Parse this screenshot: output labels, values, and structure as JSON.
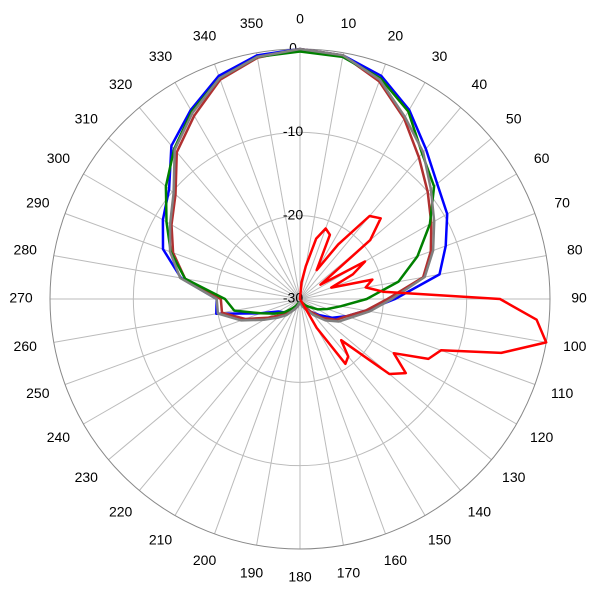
{
  "chart_data": {
    "type": "polar",
    "x": [
      0,
      10,
      20,
      30,
      40,
      50,
      60,
      70,
      80,
      90,
      100,
      110,
      120,
      130,
      140,
      150,
      160,
      170,
      180,
      190,
      200,
      210,
      220,
      230,
      240,
      250,
      260,
      270,
      280,
      290,
      300,
      310,
      320,
      330,
      340,
      350
    ],
    "xticks": [
      0,
      10,
      20,
      30,
      40,
      50,
      60,
      70,
      80,
      90,
      100,
      110,
      120,
      130,
      140,
      150,
      160,
      170,
      180,
      190,
      200,
      210,
      220,
      230,
      240,
      250,
      260,
      270,
      280,
      290,
      300,
      310,
      320,
      330,
      340,
      350
    ],
    "ylim": [
      -30,
      0
    ],
    "yticks": [
      0,
      -10,
      -20,
      -30
    ],
    "grid": true,
    "series": [
      {
        "color": "#0000ff",
        "values": [
          0,
          -0.3,
          -1.5,
          -3.8,
          -6.5,
          -8.5,
          -9.6,
          -11.4,
          -13,
          -18.6,
          -22,
          -24,
          -25.5,
          -27,
          -28,
          -29,
          -29.5,
          -29.5,
          -29.5,
          -29.5,
          -29,
          -28.5,
          -28,
          -27.5,
          -27,
          -25,
          -19.8,
          -20,
          -15.5,
          -12.5,
          -11,
          -9.5,
          -6,
          -3.8,
          -1.5,
          -0.3
        ]
      },
      {
        "color": "#b03030",
        "values": [
          0,
          -0.3,
          -2.2,
          -5,
          -7.8,
          -10,
          -11.8,
          -13.3,
          -15,
          -19.5,
          -22,
          -24,
          -25,
          -26.5,
          -28,
          -29,
          -29.5,
          -29.5,
          -29.5,
          -29.5,
          -29,
          -28.5,
          -28,
          -27,
          -25.5,
          -23,
          -20.5,
          -20.5,
          -16,
          -13.8,
          -12.2,
          -10.5,
          -7,
          -4.6,
          -2,
          -0.6
        ]
      },
      {
        "color": "#008000",
        "values": [
          -0.3,
          -0.5,
          -1.8,
          -4,
          -7.2,
          -9,
          -12,
          -15,
          -18,
          -22,
          -25,
          -26.5,
          -27.5,
          -28.5,
          -29,
          -29.5,
          -29.5,
          -29.5,
          -29.5,
          -29.5,
          -29.5,
          -29,
          -28.5,
          -27.5,
          -26.5,
          -25,
          -22,
          -21,
          -16,
          -13.5,
          -11.5,
          -9,
          -6.5,
          -4,
          -1.8,
          -0.5
        ]
      },
      {
        "color": "#808080",
        "values": [
          0,
          -0.3,
          -2,
          -4.8,
          -7,
          -9.5,
          -11.4,
          -13,
          -14.8,
          -19,
          -21.5,
          -23.5,
          -24.6,
          -26,
          -27.5,
          -28.5,
          -29,
          -29.5,
          -29.5,
          -29.5,
          -29,
          -28.5,
          -27.5,
          -26.5,
          -25,
          -22.5,
          -20,
          -20,
          -15.4,
          -13.4,
          -12,
          -10.2,
          -6.6,
          -4.2,
          -1.8,
          -0.5
        ]
      },
      {
        "color": "#ff0000",
        "x": [
          0,
          5,
          10,
          15,
          20,
          25,
          30,
          35,
          40,
          45,
          50,
          55,
          60,
          65,
          70,
          75,
          80,
          85,
          90,
          95,
          100,
          105,
          110,
          115,
          120,
          125,
          130,
          135,
          140,
          145,
          150,
          155,
          160,
          165,
          170,
          175,
          180,
          185,
          190,
          195,
          200,
          205,
          210,
          215,
          220,
          225,
          230,
          235,
          240,
          245,
          250,
          255,
          260,
          265,
          270,
          275,
          280,
          285,
          290,
          295,
          300,
          305,
          310,
          315,
          320,
          325,
          330,
          335,
          340,
          345,
          350,
          355
        ],
        "values": [
          -30,
          -28,
          -26,
          -22.5,
          -21,
          -21.5,
          -26,
          -22,
          -17,
          -16.3,
          -19,
          -27,
          -21,
          -23,
          -26,
          -21,
          -22,
          -20,
          -6,
          -1.5,
          0,
          -5,
          -12,
          -13,
          -17,
          -14.5,
          -16,
          -23,
          -21,
          -20.5,
          -26,
          -30,
          -30,
          -30,
          -30,
          -30,
          -30,
          -30,
          -30,
          -30,
          -30,
          -30,
          -30,
          -30,
          -30,
          -30,
          -30,
          -30,
          -30,
          -30,
          -30,
          -30,
          -30,
          -30,
          -30,
          -30,
          -30,
          -30,
          -30,
          -30,
          -30,
          -30,
          -30,
          -30,
          -30,
          -30,
          -30,
          -30,
          -30,
          -30,
          -30,
          -30
        ]
      }
    ]
  }
}
